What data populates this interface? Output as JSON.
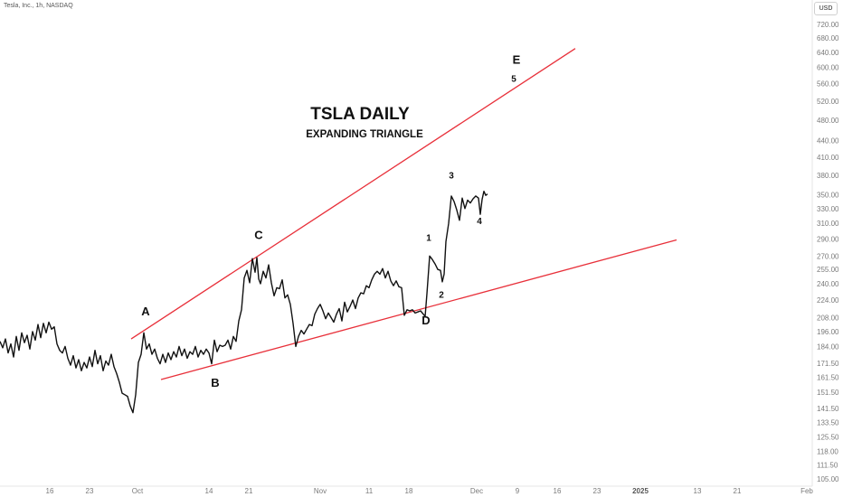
{
  "header": {
    "symbol_line": "Tesla, Inc., 1h, NASDAQ",
    "currency": "USD"
  },
  "chart_data": {
    "type": "line",
    "title": "TSLA DAILY",
    "subtitle": "EXPANDING TRIANGLE",
    "y_scale": "log",
    "ylim": [
      103,
      760
    ],
    "y_ticks": [
      105.0,
      111.5,
      118.0,
      125.5,
      133.5,
      141.5,
      151.5,
      161.5,
      171.5,
      184.0,
      196.0,
      208.0,
      224.0,
      240.0,
      255.0,
      270.0,
      290.0,
      310.0,
      330.0,
      350.0,
      380.0,
      410.0,
      440.0,
      480.0,
      520.0,
      560.0,
      600.0,
      640.0,
      680.0,
      720.0
    ],
    "x_ticks": [
      "16",
      "23",
      "Oct",
      "14",
      "21",
      "Nov",
      "11",
      "18",
      "Dec",
      "9",
      "16",
      "23",
      "2025",
      "13",
      "21",
      "Feb"
    ],
    "x_ticks_bold": [
      "2025"
    ],
    "series_color": "#111111",
    "trendline_color": "#e8303a",
    "price_series": [
      [
        0,
        188
      ],
      [
        3,
        183
      ],
      [
        6,
        190
      ],
      [
        9,
        179
      ],
      [
        12,
        186
      ],
      [
        15,
        176
      ],
      [
        18,
        192
      ],
      [
        21,
        181
      ],
      [
        24,
        195
      ],
      [
        27,
        187
      ],
      [
        30,
        193
      ],
      [
        33,
        182
      ],
      [
        36,
        196
      ],
      [
        39,
        189
      ],
      [
        42,
        202
      ],
      [
        45,
        191
      ],
      [
        48,
        203
      ],
      [
        51,
        195
      ],
      [
        54,
        204
      ],
      [
        57,
        198
      ],
      [
        60,
        200
      ],
      [
        63,
        186
      ],
      [
        66,
        181
      ],
      [
        69,
        179
      ],
      [
        72,
        184
      ],
      [
        75,
        175
      ],
      [
        78,
        170
      ],
      [
        81,
        177
      ],
      [
        84,
        168
      ],
      [
        87,
        174
      ],
      [
        90,
        166
      ],
      [
        93,
        172
      ],
      [
        96,
        168
      ],
      [
        99,
        176
      ],
      [
        102,
        169
      ],
      [
        105,
        181
      ],
      [
        108,
        171
      ],
      [
        111,
        177
      ],
      [
        114,
        166
      ],
      [
        117,
        173
      ],
      [
        120,
        170
      ],
      [
        123,
        178
      ],
      [
        126,
        169
      ],
      [
        129,
        164
      ],
      [
        132,
        158
      ],
      [
        135,
        151
      ],
      [
        138,
        150
      ],
      [
        141,
        149
      ],
      [
        144,
        143
      ],
      [
        147,
        139
      ],
      [
        150,
        150
      ],
      [
        153,
        172
      ],
      [
        156,
        178
      ],
      [
        159,
        195
      ],
      [
        162,
        182
      ],
      [
        165,
        186
      ],
      [
        168,
        178
      ],
      [
        171,
        182
      ],
      [
        174,
        175
      ],
      [
        177,
        171
      ],
      [
        180,
        178
      ],
      [
        183,
        172
      ],
      [
        186,
        179
      ],
      [
        189,
        174
      ],
      [
        192,
        180
      ],
      [
        195,
        176
      ],
      [
        198,
        184
      ],
      [
        201,
        177
      ],
      [
        204,
        182
      ],
      [
        207,
        175
      ],
      [
        210,
        180
      ],
      [
        213,
        178
      ],
      [
        216,
        184
      ],
      [
        219,
        176
      ],
      [
        222,
        181
      ],
      [
        225,
        178
      ],
      [
        228,
        182
      ],
      [
        231,
        179
      ],
      [
        234,
        171
      ],
      [
        237,
        189
      ],
      [
        240,
        180
      ],
      [
        243,
        185
      ],
      [
        246,
        184
      ],
      [
        249,
        185
      ],
      [
        252,
        189
      ],
      [
        255,
        182
      ],
      [
        258,
        192
      ],
      [
        261,
        188
      ],
      [
        264,
        205
      ],
      [
        267,
        215
      ],
      [
        270,
        246
      ],
      [
        273,
        254
      ],
      [
        276,
        241
      ],
      [
        279,
        267
      ],
      [
        282,
        252
      ],
      [
        284,
        268
      ],
      [
        286,
        245
      ],
      [
        288,
        240
      ],
      [
        291,
        253
      ],
      [
        294,
        246
      ],
      [
        297,
        260
      ],
      [
        300,
        241
      ],
      [
        303,
        228
      ],
      [
        306,
        236
      ],
      [
        309,
        235
      ],
      [
        312,
        244
      ],
      [
        315,
        226
      ],
      [
        318,
        229
      ],
      [
        321,
        220
      ],
      [
        324,
        203
      ],
      [
        327,
        184
      ],
      [
        330,
        192
      ],
      [
        333,
        197
      ],
      [
        336,
        194
      ],
      [
        339,
        198
      ],
      [
        342,
        202
      ],
      [
        345,
        201
      ],
      [
        348,
        211
      ],
      [
        351,
        216
      ],
      [
        354,
        220
      ],
      [
        357,
        214
      ],
      [
        360,
        207
      ],
      [
        363,
        212
      ],
      [
        366,
        208
      ],
      [
        369,
        204
      ],
      [
        372,
        211
      ],
      [
        375,
        216
      ],
      [
        378,
        205
      ],
      [
        381,
        222
      ],
      [
        384,
        213
      ],
      [
        387,
        218
      ],
      [
        390,
        224
      ],
      [
        393,
        216
      ],
      [
        396,
        226
      ],
      [
        399,
        231
      ],
      [
        402,
        230
      ],
      [
        405,
        238
      ],
      [
        408,
        236
      ],
      [
        411,
        244
      ],
      [
        414,
        250
      ],
      [
        417,
        253
      ],
      [
        420,
        250
      ],
      [
        423,
        256
      ],
      [
        426,
        246
      ],
      [
        429,
        253
      ],
      [
        432,
        243
      ],
      [
        435,
        238
      ],
      [
        438,
        243
      ],
      [
        441,
        237
      ],
      [
        444,
        236
      ],
      [
        447,
        210
      ],
      [
        450,
        215
      ],
      [
        453,
        214
      ],
      [
        456,
        215
      ],
      [
        459,
        212
      ],
      [
        462,
        213
      ],
      [
        465,
        214
      ],
      [
        468,
        211
      ],
      [
        470,
        209
      ],
      [
        472,
        230
      ],
      [
        475,
        270
      ],
      [
        478,
        266
      ],
      [
        481,
        261
      ],
      [
        484,
        255
      ],
      [
        487,
        254
      ],
      [
        489,
        242
      ],
      [
        491,
        250
      ],
      [
        493,
        287
      ],
      [
        496,
        310
      ],
      [
        499,
        348
      ],
      [
        502,
        340
      ],
      [
        505,
        328
      ],
      [
        508,
        314
      ],
      [
        511,
        345
      ],
      [
        514,
        330
      ],
      [
        517,
        342
      ],
      [
        520,
        338
      ],
      [
        523,
        344
      ],
      [
        526,
        348
      ],
      [
        529,
        345
      ],
      [
        531,
        322
      ],
      [
        533,
        343
      ],
      [
        535,
        355
      ],
      [
        537,
        349
      ],
      [
        539,
        351
      ]
    ],
    "trendlines": [
      {
        "name": "A-E line",
        "points": [
          [
            145,
            190
          ],
          [
            636,
            650
          ]
        ]
      },
      {
        "name": "B-D line",
        "points": [
          [
            178,
            160
          ],
          [
            748,
            289
          ]
        ]
      }
    ],
    "wave_labels": [
      {
        "text": "A",
        "x": 161,
        "y": 210,
        "size": "large"
      },
      {
        "text": "B",
        "x": 238,
        "y": 155,
        "size": "large"
      },
      {
        "text": "C",
        "x": 286,
        "y": 290,
        "size": "large"
      },
      {
        "text": "D",
        "x": 471,
        "y": 202,
        "size": "large"
      },
      {
        "text": "E",
        "x": 571,
        "y": 610,
        "size": "large"
      },
      {
        "text": "5",
        "x": 568,
        "y": 565,
        "size": "small"
      },
      {
        "text": "1",
        "x": 474,
        "y": 288,
        "size": "small"
      },
      {
        "text": "2",
        "x": 488,
        "y": 226,
        "size": "small"
      },
      {
        "text": "3",
        "x": 499,
        "y": 375,
        "size": "small"
      },
      {
        "text": "4",
        "x": 530,
        "y": 309,
        "size": "small"
      }
    ]
  }
}
